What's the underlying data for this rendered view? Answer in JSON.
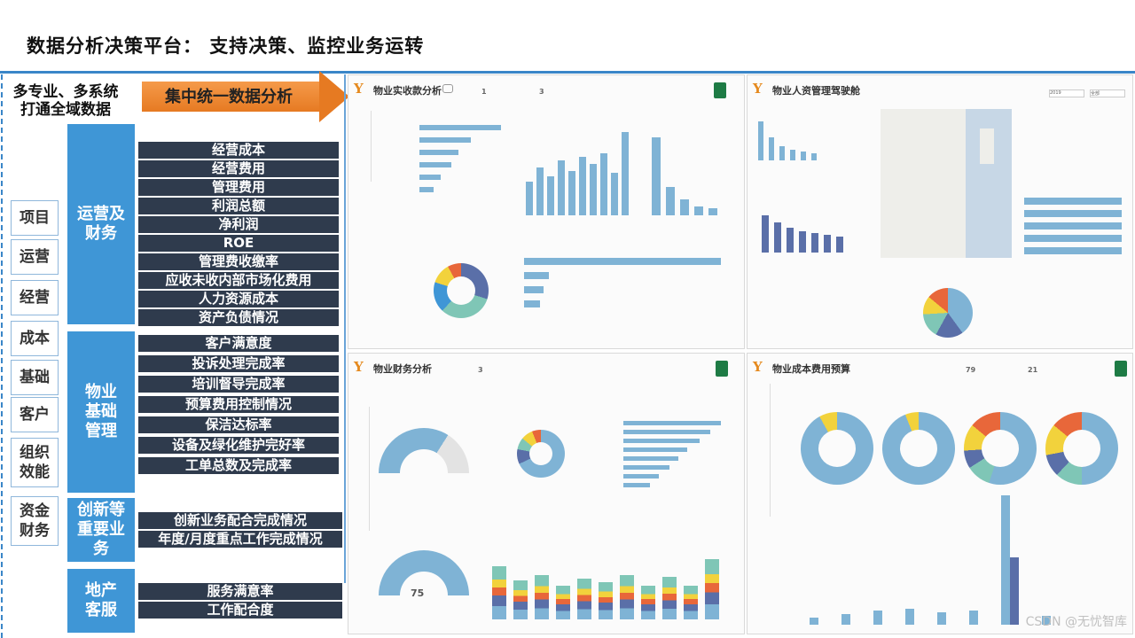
{
  "title": "数据分析决策平台：  支持决策、监控业务运转",
  "multi_label": [
    "多专业、多系统",
    "打通全域数据"
  ],
  "arrow_label": "集中统一数据分析",
  "categories": [
    "项目",
    "运营",
    "经营",
    "成本",
    "基础",
    "客户",
    "组织效能",
    "资金财务"
  ],
  "groups": [
    {
      "label": "运营及财务",
      "items": [
        "经营成本",
        "经营费用",
        "管理费用",
        "利润总额",
        "净利润",
        "ROE",
        "管理费收缴率",
        "应收未收内部市场化费用",
        "人力资源成本",
        "资产负债情况"
      ]
    },
    {
      "label": "物业基础管理",
      "items": [
        "客户满意度",
        "投诉处理完成率",
        "培训督导完成率",
        "预算费用控制情况",
        "保洁达标率",
        "设备及绿化维护完好率",
        "工单总数及完成率"
      ]
    },
    {
      "label": "创新等重要业务",
      "items": [
        "创新业务配合完成情况",
        "年度/月度重点工作完成情况"
      ]
    },
    {
      "label": "地产客服",
      "items": [
        "服务满意率",
        "工作配合度"
      ]
    }
  ],
  "screens": {
    "s1": {
      "title": "物业实收款分析",
      "k1": "1",
      "k2": "3"
    },
    "s2": {
      "title": "物业人资管理驾驶舱",
      "year": "2019",
      "city": "全部"
    },
    "s3": {
      "title": "物业财务分析",
      "k1": "3",
      "gauge": "75"
    },
    "s4": {
      "title": "物业成本费用预算",
      "k1": "79",
      "k2": "21"
    }
  },
  "watermark": "CSDN @无忧智库",
  "colors": {
    "accent": "#3f96d6",
    "item_bg": "#2f3b4d",
    "arrow": "#e67a22"
  }
}
